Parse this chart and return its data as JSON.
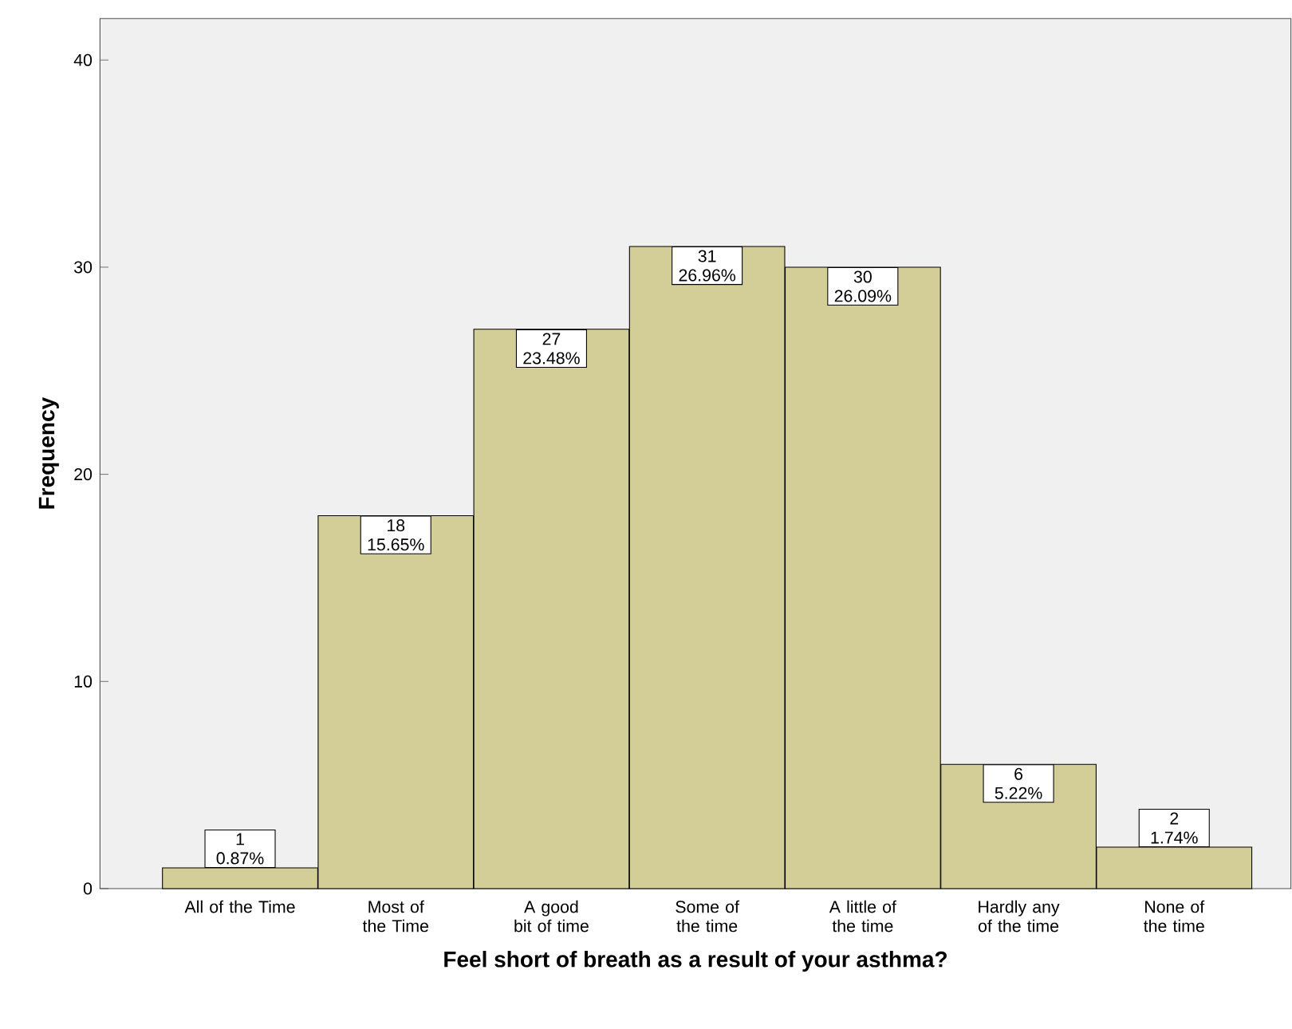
{
  "chart_data": {
    "type": "bar",
    "xlabel": "Feel short of breath as a result of your asthma?",
    "ylabel": "Frequency",
    "categories": [
      "All of the Time",
      "Most of the Time",
      "A good bit of time",
      "Some of the time",
      "A little of the time",
      "Hardly any of the time",
      "None of the time"
    ],
    "values": [
      1,
      18,
      27,
      31,
      30,
      6,
      2
    ],
    "value_labels": [
      "1 0.87%",
      "18 15.65%",
      "27 23.48%",
      "31 26.96%",
      "30 26.09%",
      "6 5.22%",
      "2 1.74%"
    ],
    "color": "#d3ce97",
    "ylim": [
      0,
      42
    ],
    "yticks": [
      0,
      10,
      20,
      30,
      40
    ],
    "grid": false
  }
}
